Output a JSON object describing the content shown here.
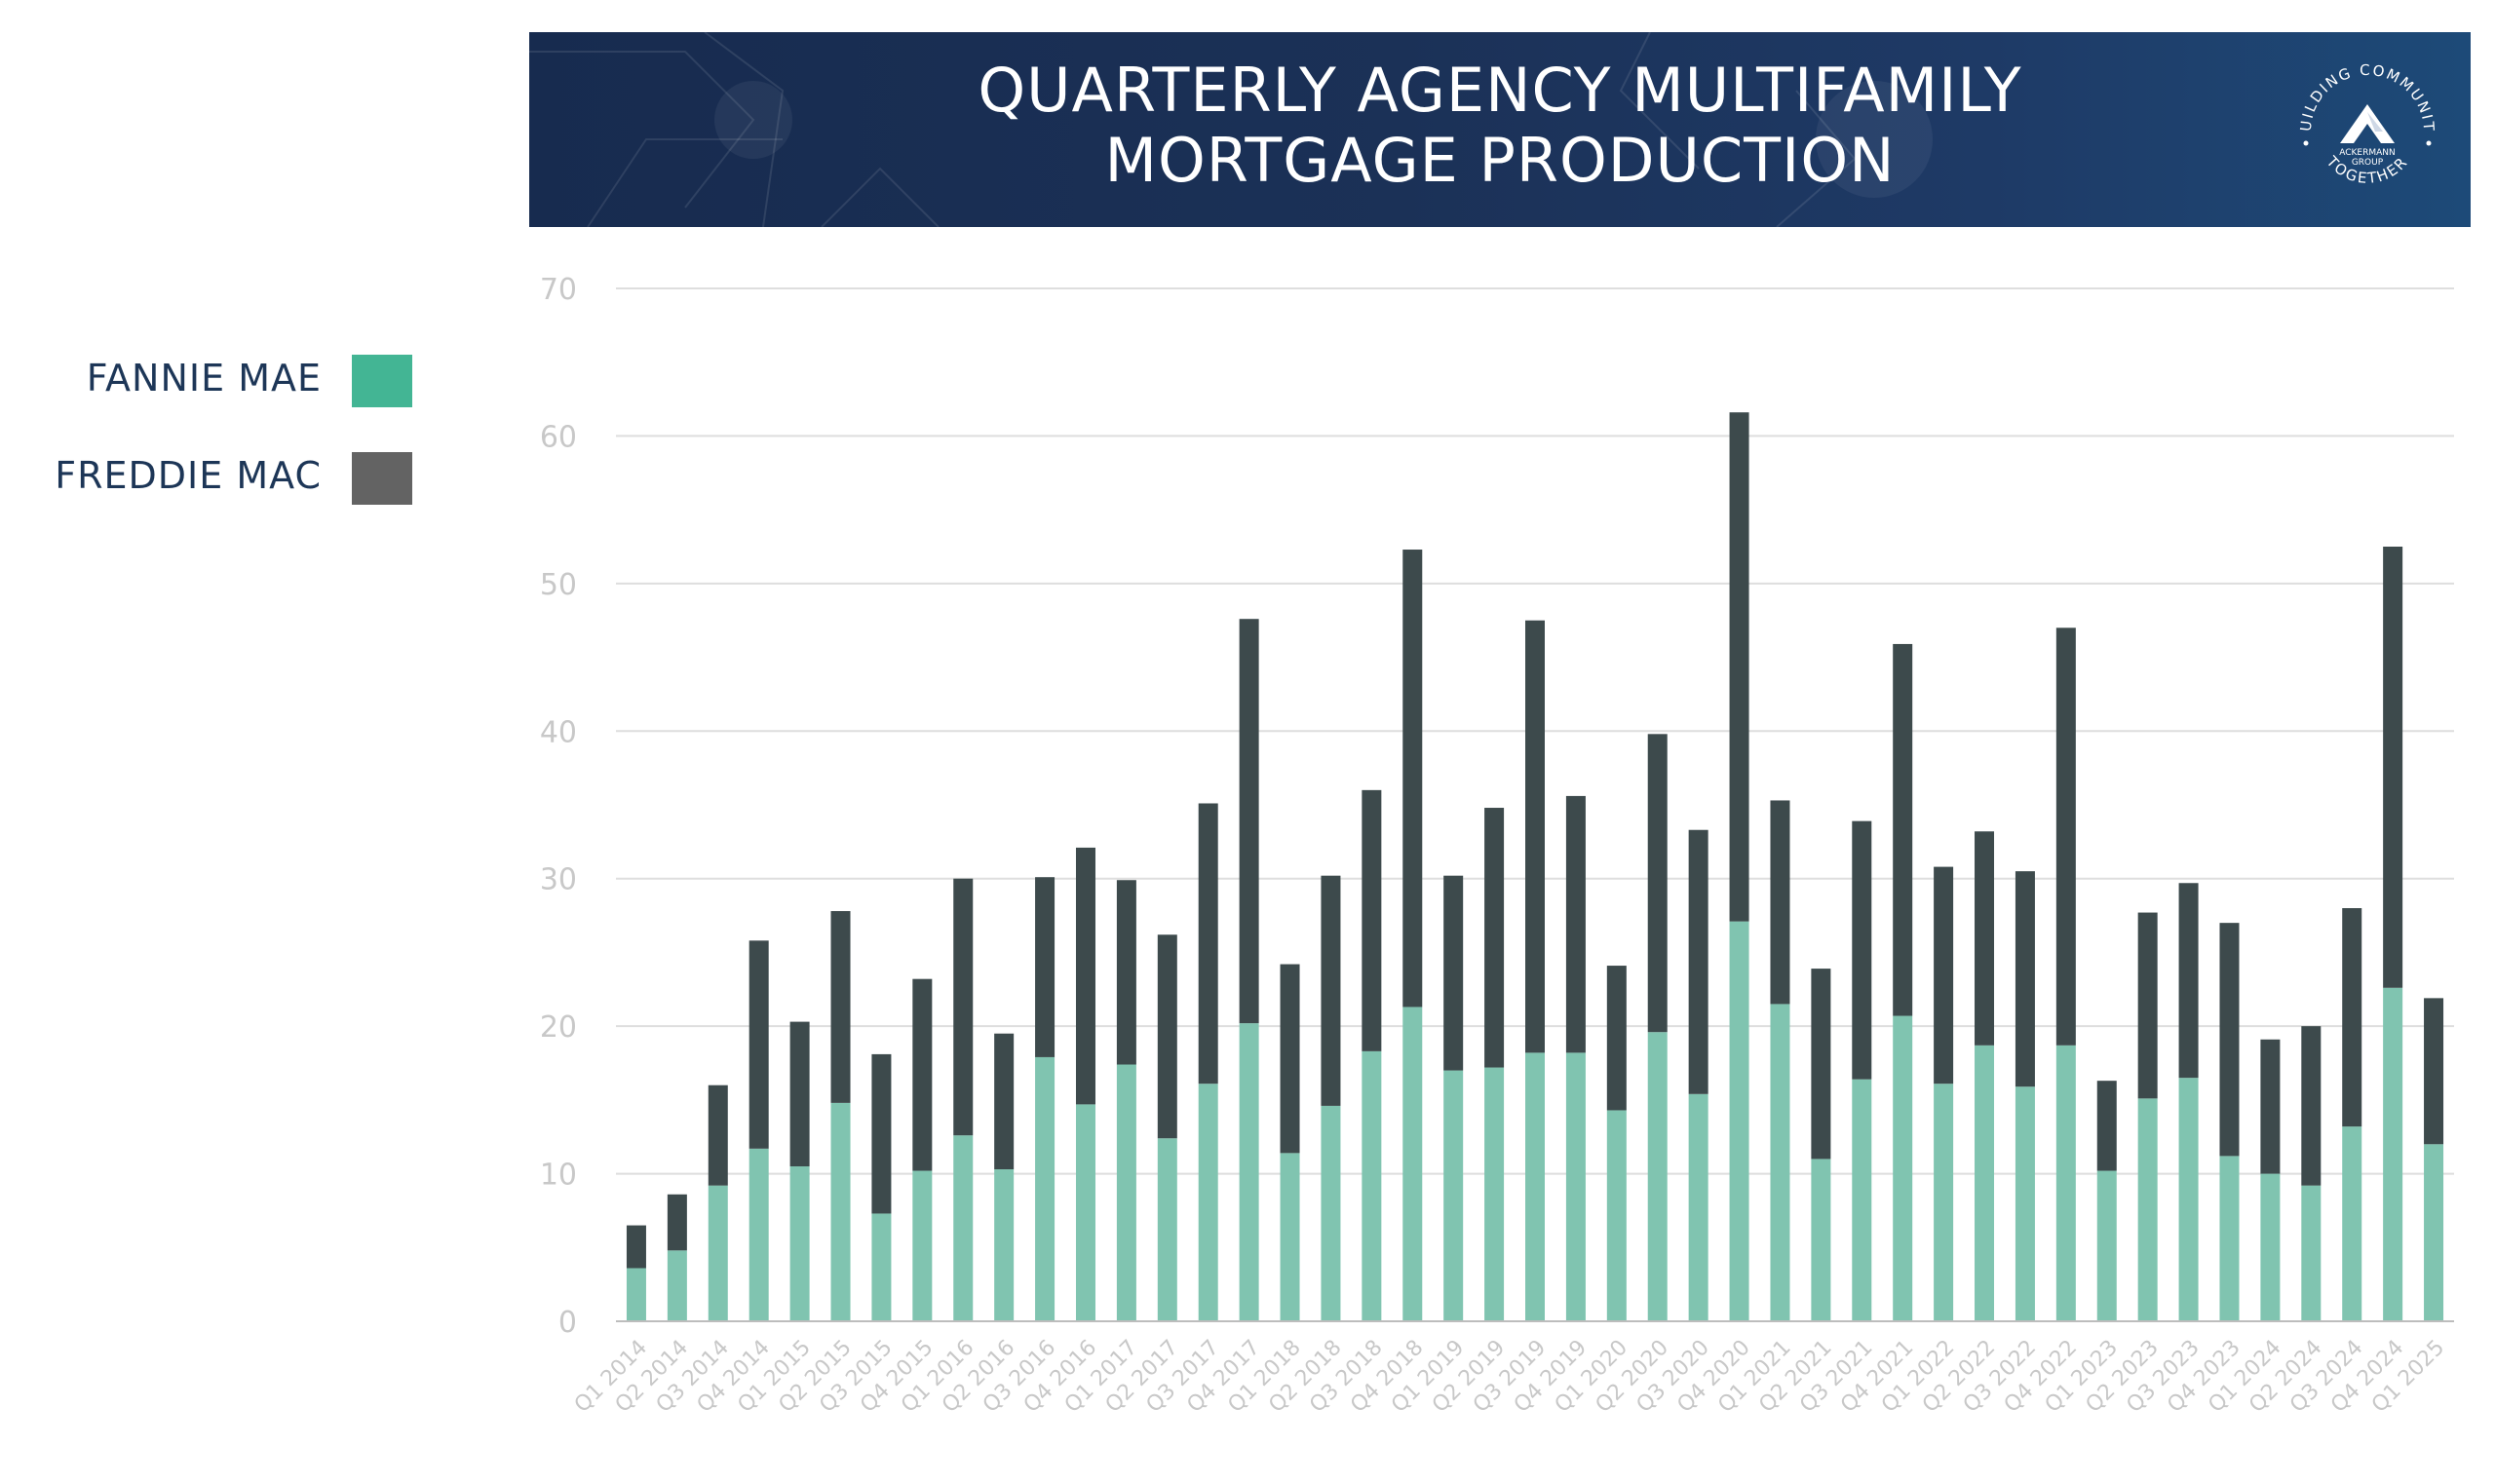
{
  "header": {
    "title_line1": "QUARTERLY AGENCY MULTIFAMILY",
    "title_line2": "MORTGAGE PRODUCTION",
    "logo": {
      "ring_text_top": "BUILDING COMMUNITY",
      "ring_text_bottom": "TOGETHER",
      "brand_line1": "ACKERMANN",
      "brand_line2": "GROUP",
      "icon": "mountain-peak-icon"
    }
  },
  "legend": {
    "items": [
      {
        "label": "FANNIE MAE",
        "color": "#43b594"
      },
      {
        "label": "FREDDIE MAC",
        "color": "#636363"
      }
    ]
  },
  "colors": {
    "fannie_bar": "#80c4b0",
    "freddie_bar": "#3d4a4c",
    "gridline": "#dedede",
    "tick_text": "#c8c8c8",
    "title_text": "#1d3657"
  },
  "chart_data": {
    "type": "bar",
    "stacked": true,
    "grid": true,
    "legend_position": "left",
    "ylim": [
      0,
      70
    ],
    "yticks": [
      0,
      10,
      20,
      30,
      40,
      50,
      60,
      70
    ],
    "categories": [
      "Q1 2014",
      "Q2 2014",
      "Q3 2014",
      "Q4 2014",
      "Q1 2015",
      "Q2 2015",
      "Q3 2015",
      "Q4 2015",
      "Q1 2016",
      "Q2 2016",
      "Q3 2016",
      "Q4 2016",
      "Q1 2017",
      "Q2 2017",
      "Q3 2017",
      "Q4 2017",
      "Q1 2018",
      "Q2 2018",
      "Q3 2018",
      "Q4 2018",
      "Q1 2019",
      "Q2 2019",
      "Q3 2019",
      "Q4 2019",
      "Q1 2020",
      "Q2 2020",
      "Q3 2020",
      "Q4 2020",
      "Q1 2021",
      "Q2 2021",
      "Q3 2021",
      "Q4 2021",
      "Q1 2022",
      "Q2 2022",
      "Q3 2022",
      "Q4 2022",
      "Q1 2023",
      "Q2 2023",
      "Q3 2023",
      "Q4 2023",
      "Q1 2024",
      "Q2 2024",
      "Q3 2024",
      "Q4 2024",
      "Q1 2025"
    ],
    "series": [
      {
        "name": "FANNIE MAE",
        "values": [
          3.6,
          4.8,
          9.2,
          11.7,
          10.5,
          14.8,
          7.3,
          10.2,
          12.6,
          10.3,
          17.9,
          14.7,
          17.4,
          12.4,
          16.1,
          20.2,
          11.4,
          14.6,
          18.3,
          21.3,
          17.0,
          17.2,
          18.2,
          18.2,
          14.3,
          19.6,
          15.4,
          27.1,
          21.5,
          11.0,
          16.4,
          20.7,
          16.1,
          18.7,
          15.9,
          18.7,
          10.2,
          15.1,
          16.5,
          11.2,
          10.0,
          9.2,
          13.2,
          22.6,
          12.0
        ]
      },
      {
        "name": "FREDDIE MAC",
        "values": [
          2.9,
          3.8,
          6.8,
          14.1,
          9.8,
          13.0,
          10.8,
          13.0,
          17.4,
          9.2,
          12.2,
          17.4,
          12.5,
          13.8,
          19.0,
          27.4,
          12.8,
          15.6,
          17.7,
          31.0,
          13.2,
          17.6,
          29.3,
          17.4,
          9.8,
          20.2,
          17.9,
          34.5,
          13.8,
          12.9,
          17.5,
          25.2,
          14.7,
          14.5,
          14.6,
          28.3,
          6.1,
          12.6,
          13.2,
          15.8,
          9.1,
          10.8,
          14.8,
          29.9,
          9.9
        ]
      }
    ],
    "title": "",
    "xlabel": "",
    "ylabel": ""
  }
}
